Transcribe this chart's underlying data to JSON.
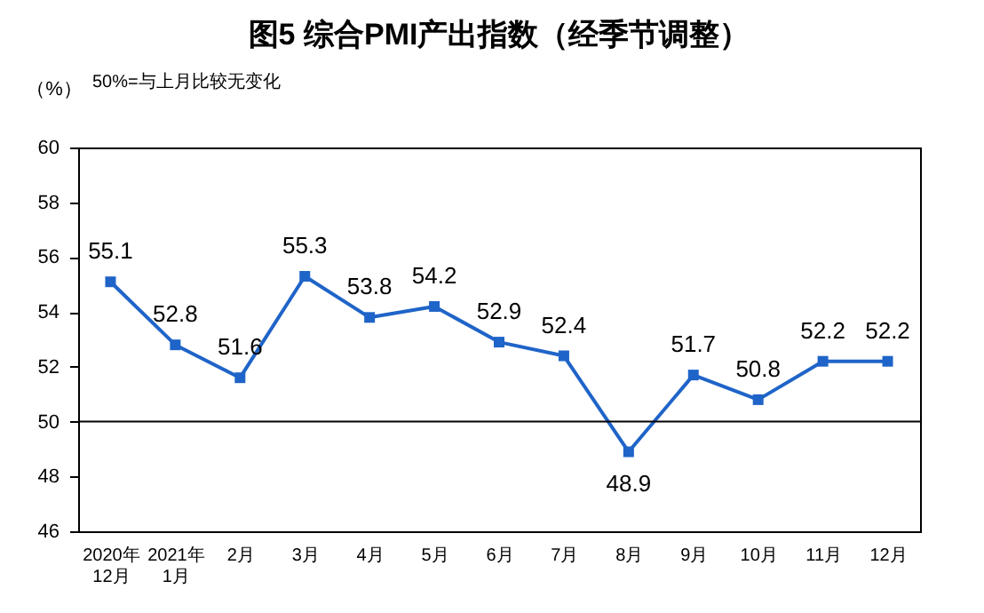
{
  "chart_data": {
    "type": "line",
    "title": "图5  综合PMI产出指数（经季节调整）",
    "ylabel": "（%）",
    "annotations": [
      "50%=与上月比较无变化"
    ],
    "categories": [
      "2020年\n12月",
      "2021年\n1月",
      "2月",
      "3月",
      "4月",
      "5月",
      "6月",
      "7月",
      "8月",
      "9月",
      "10月",
      "11月",
      "12月"
    ],
    "series": [
      {
        "color": "#1f64c8",
        "values": [
          55.1,
          52.8,
          51.6,
          55.3,
          53.8,
          54.2,
          52.9,
          52.4,
          48.9,
          51.7,
          50.8,
          52.2,
          52.2
        ]
      }
    ],
    "ylim": [
      46,
      60
    ],
    "yticks": [
      46,
      48,
      50,
      52,
      54,
      56,
      58,
      60
    ],
    "ref_lines": [
      {
        "axis": "y",
        "value": 50,
        "color": "#000000"
      }
    ],
    "data_labels": true,
    "marker": "square",
    "grid": false
  }
}
